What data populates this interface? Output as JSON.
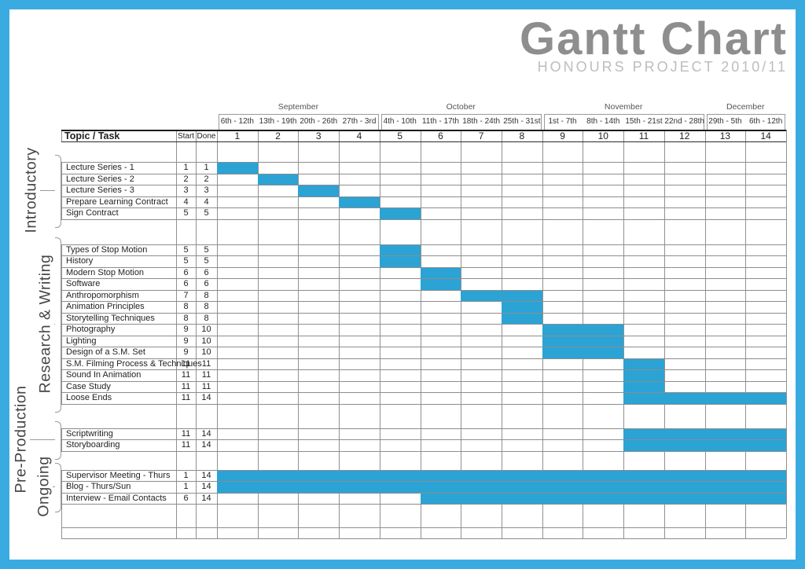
{
  "title": "Gantt Chart",
  "subtitle": "HONOURS PROJECT 2010/11",
  "headers": {
    "topic": "Topic / Task",
    "start": "Start",
    "done": "Done"
  },
  "colors": {
    "bar": "#2BA3D4",
    "frame": "#3AABE0",
    "title": "#8E8E8E",
    "subtitle": "#BDBDBD",
    "grid": "#909090"
  },
  "chart_data": {
    "type": "bar",
    "variant": "gantt",
    "title": "Gantt Chart",
    "subtitle": "HONOURS PROJECT 2010/11",
    "x_unit": "week",
    "x_range": [
      1,
      14
    ],
    "months": [
      {
        "name": "September",
        "from": 1,
        "to": 4
      },
      {
        "name": "October",
        "from": 5,
        "to": 8
      },
      {
        "name": "November",
        "from": 9,
        "to": 12
      },
      {
        "name": "December",
        "from": 13,
        "to": 14
      }
    ],
    "weeks": [
      {
        "num": 1,
        "dates": "6th - 12th"
      },
      {
        "num": 2,
        "dates": "13th - 19th"
      },
      {
        "num": 3,
        "dates": "20th - 26th"
      },
      {
        "num": 4,
        "dates": "27th - 3rd"
      },
      {
        "num": 5,
        "dates": "4th - 10th"
      },
      {
        "num": 6,
        "dates": "11th - 17th"
      },
      {
        "num": 7,
        "dates": "18th - 24th"
      },
      {
        "num": 8,
        "dates": "25th - 31st"
      },
      {
        "num": 9,
        "dates": "1st - 7th"
      },
      {
        "num": 10,
        "dates": "8th - 14th"
      },
      {
        "num": 11,
        "dates": "15th - 21st"
      },
      {
        "num": 12,
        "dates": "22nd - 28th"
      },
      {
        "num": 13,
        "dates": "29th - 5th"
      },
      {
        "num": 14,
        "dates": "6th - 12th"
      }
    ],
    "groups": [
      {
        "label": "Introductory",
        "tasks": [
          {
            "name": "Lecture Series - 1",
            "start": 1,
            "done": 1
          },
          {
            "name": "Lecture Series - 2",
            "start": 2,
            "done": 2
          },
          {
            "name": "Lecture Series - 3",
            "start": 3,
            "done": 3
          },
          {
            "name": "Prepare Learning Contract",
            "start": 4,
            "done": 4
          },
          {
            "name": "Sign Contract",
            "start": 5,
            "done": 5
          }
        ]
      },
      {
        "label": "Research & Writing",
        "tasks": [
          {
            "name": "Types of Stop Motion",
            "start": 5,
            "done": 5
          },
          {
            "name": "History",
            "start": 5,
            "done": 5
          },
          {
            "name": "Modern Stop Motion",
            "start": 6,
            "done": 6
          },
          {
            "name": "Software",
            "start": 6,
            "done": 6
          },
          {
            "name": "Anthropomorphism",
            "start": 7,
            "done": 8
          },
          {
            "name": "Animation Principles",
            "start": 8,
            "done": 8
          },
          {
            "name": "Storytelling Techniques",
            "start": 8,
            "done": 8
          },
          {
            "name": "Photography",
            "start": 9,
            "done": 10
          },
          {
            "name": "Lighting",
            "start": 9,
            "done": 10
          },
          {
            "name": "Design of a S.M. Set",
            "start": 9,
            "done": 10
          },
          {
            "name": "S.M. Filming Process & Techniques",
            "start": 11,
            "done": 11
          },
          {
            "name": "Sound In Animation",
            "start": 11,
            "done": 11
          },
          {
            "name": "Case Study",
            "start": 11,
            "done": 11
          },
          {
            "name": "Loose Ends",
            "start": 11,
            "done": 14
          }
        ]
      },
      {
        "label": "Pre-Production",
        "tasks": [
          {
            "name": "Scriptwriting",
            "start": 11,
            "done": 14
          },
          {
            "name": "Storyboarding",
            "start": 11,
            "done": 14
          }
        ]
      },
      {
        "label": "Ongoing",
        "tasks": [
          {
            "name": "Supervisor Meeting - Thurs",
            "start": 1,
            "done": 14
          },
          {
            "name": "Blog - Thurs/Sun",
            "start": 1,
            "done": 14
          },
          {
            "name": "Interview - Email Contacts",
            "start": 6,
            "done": 14
          }
        ]
      }
    ]
  }
}
